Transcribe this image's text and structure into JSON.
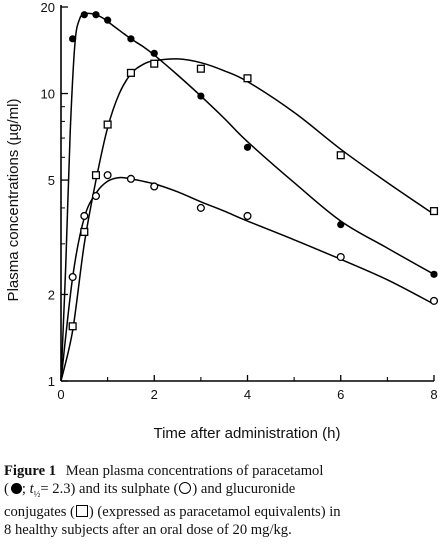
{
  "chart_data": {
    "type": "line",
    "xlabel": "Time after administration (h)",
    "ylabel": "Plasma concentrations (µg/ml)",
    "xlim": [
      0,
      8
    ],
    "ylim": [
      1,
      20
    ],
    "yscale": "log",
    "xticks": [
      0,
      2,
      4,
      6,
      8
    ],
    "xticklabels": [
      "0",
      "2",
      "4",
      "6",
      "8"
    ],
    "yticks": [
      1,
      2,
      5,
      10,
      20
    ],
    "yticklabels": [
      "1",
      "2",
      "5",
      "10",
      "20"
    ],
    "grid": false,
    "legend": "none",
    "series": [
      {
        "marker": "filled-circle",
        "x": [
          0.25,
          0.5,
          0.75,
          1.0,
          1.5,
          2.0,
          3.0,
          4.0,
          6.0,
          8.0
        ],
        "y": [
          15.5,
          18.8,
          18.8,
          18.0,
          15.5,
          13.8,
          9.8,
          6.5,
          3.5,
          2.35
        ]
      },
      {
        "marker": "open-circle",
        "x": [
          0.25,
          0.5,
          0.75,
          1.0,
          1.5,
          2.0,
          3.0,
          4.0,
          6.0,
          8.0
        ],
        "y": [
          2.3,
          3.75,
          4.4,
          5.2,
          5.05,
          4.75,
          4.0,
          3.75,
          2.7,
          1.9
        ]
      },
      {
        "marker": "open-square",
        "x": [
          0.25,
          0.5,
          0.75,
          1.0,
          1.5,
          2.0,
          3.0,
          4.0,
          6.0,
          8.0
        ],
        "y": [
          1.55,
          3.3,
          5.2,
          7.8,
          11.8,
          12.7,
          12.2,
          11.3,
          6.1,
          3.9
        ]
      }
    ],
    "curves": [
      {
        "x": [
          0,
          0.1,
          0.2,
          0.3,
          0.4,
          0.5,
          0.6,
          0.75,
          0.9,
          1.0,
          1.25,
          1.5,
          1.75,
          2.0,
          2.5,
          3.0,
          3.5,
          4.0,
          5.0,
          6.0,
          7.0,
          8.0
        ],
        "y": [
          1,
          2.5,
          7.5,
          15.0,
          18.2,
          18.9,
          19.0,
          18.8,
          18.3,
          17.8,
          16.6,
          15.5,
          14.6,
          13.6,
          11.6,
          9.8,
          8.2,
          6.8,
          4.9,
          3.6,
          2.9,
          2.35
        ]
      },
      {
        "x": [
          0,
          0.25,
          0.5,
          0.75,
          1.0,
          1.25,
          1.5,
          2.0,
          2.5,
          3.0,
          3.5,
          4.0,
          5.0,
          6.0,
          7.0,
          8.0
        ],
        "y": [
          1,
          2.3,
          3.7,
          4.5,
          4.95,
          5.1,
          5.05,
          4.85,
          4.55,
          4.2,
          3.9,
          3.6,
          3.1,
          2.65,
          2.25,
          1.85
        ]
      },
      {
        "x": [
          0,
          0.25,
          0.5,
          0.75,
          1.0,
          1.25,
          1.5,
          1.75,
          2.0,
          2.5,
          3.0,
          3.5,
          4.0,
          5.0,
          6.0,
          7.0,
          8.0
        ],
        "y": [
          1,
          1.5,
          3.0,
          5.0,
          7.6,
          10.0,
          11.7,
          12.6,
          13.0,
          13.2,
          12.8,
          12.0,
          11.0,
          8.6,
          6.4,
          4.9,
          3.8
        ]
      }
    ]
  },
  "caption": {
    "label": "Figure 1",
    "part1": "Mean plasma concentrations of paracetamol",
    "part2_open": "(",
    "t_half": "t",
    "t_sub": "½",
    "t_value": "= 2.3)",
    "part2_mid": "and its sulphate (",
    "part2_close": ") and glucuronide",
    "part3_open": "conjugates (",
    "part3_close": ") (expressed as paracetamol equivalents) in",
    "part4": "8 healthy subjects after an oral dose of 20 mg/kg."
  }
}
